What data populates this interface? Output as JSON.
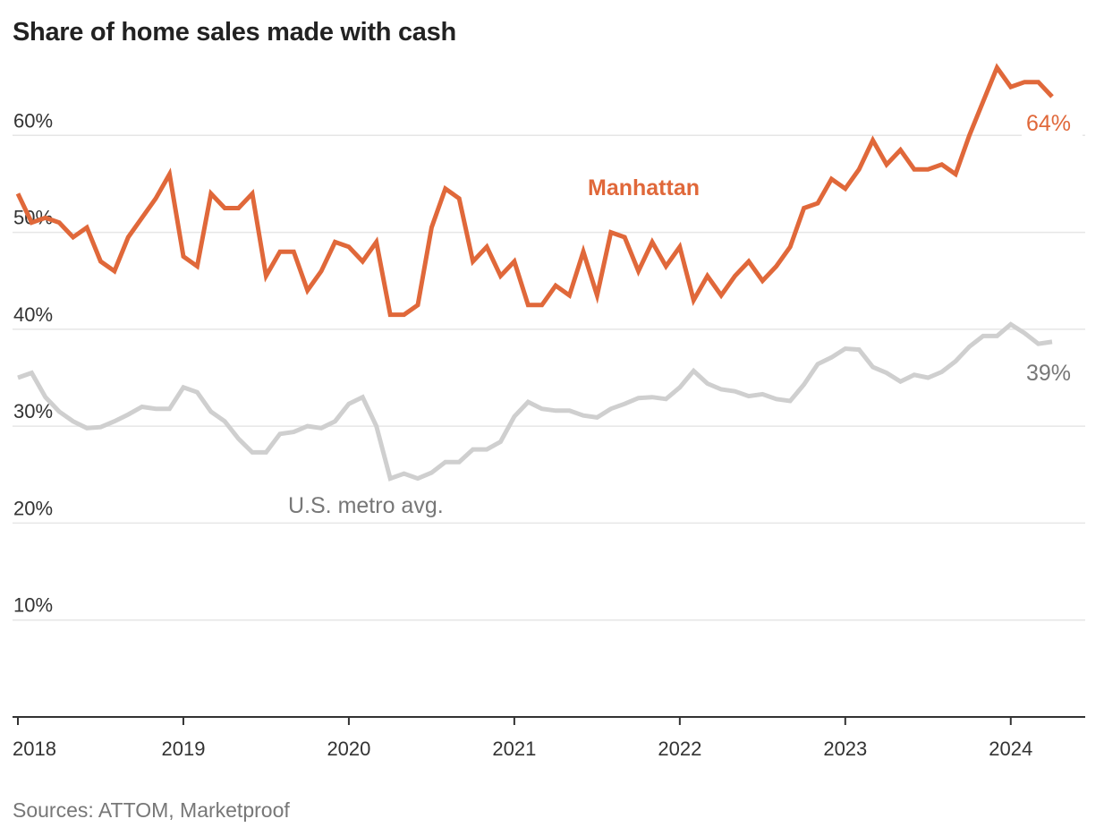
{
  "title": "Share of home sales made with cash",
  "source": "Sources: ATTOM, Marketproof",
  "chart_data": {
    "type": "line",
    "title": "Share of home sales made with cash",
    "xlabel": "",
    "ylabel": "",
    "xlim": [
      2018.0,
      2024.45
    ],
    "ylim": [
      0,
      70
    ],
    "y_ticks": [
      10,
      20,
      30,
      40,
      50,
      60
    ],
    "y_tick_labels": [
      "10%",
      "20%",
      "30%",
      "40%",
      "50%",
      "60%"
    ],
    "x_ticks": [
      2018,
      2019,
      2020,
      2021,
      2022,
      2023,
      2024
    ],
    "x_tick_labels": [
      "2018",
      "2019",
      "2020",
      "2021",
      "2022",
      "2023",
      "2024"
    ],
    "grid": true,
    "series": [
      {
        "name": "Manhattan",
        "label": "Manhattan",
        "end_label": "64%",
        "color": "#e0683a",
        "start": "2018-01",
        "frequency": "monthly",
        "values": [
          54,
          51,
          51.5,
          51,
          49.5,
          50.5,
          47,
          46,
          49.5,
          51.5,
          53.5,
          56,
          47.5,
          46.5,
          54,
          52.5,
          52.5,
          54,
          45.5,
          48,
          48,
          44,
          46,
          49,
          48.5,
          47,
          49,
          41.5,
          41.5,
          42.5,
          50.5,
          54.5,
          53.5,
          47,
          48.5,
          45.5,
          47,
          42.5,
          42.5,
          44.5,
          43.5,
          48,
          43.5,
          50,
          49.5,
          46,
          49,
          46.5,
          48.5,
          43,
          45.5,
          43.5,
          45.5,
          47,
          45,
          46.5,
          48.5,
          52.5,
          53,
          55.5,
          54.5,
          56.5,
          59.5,
          57,
          58.5,
          56.5,
          56.5,
          57,
          56,
          60,
          63.5,
          67,
          65,
          65.5,
          65.5,
          64
        ]
      },
      {
        "name": "U.S. metro avg.",
        "label": "U.S. metro avg.",
        "end_label": "39%",
        "color": "#cfcfcf",
        "start": "2018-01",
        "frequency": "monthly",
        "values": [
          35,
          35.5,
          33,
          31.5,
          30.5,
          29.8,
          29.9,
          30.5,
          31.2,
          32,
          31.8,
          31.8,
          34,
          33.5,
          31.5,
          30.5,
          28.7,
          27.3,
          27.3,
          29.2,
          29.4,
          30,
          29.8,
          30.5,
          32.3,
          33,
          30,
          24.6,
          25.1,
          24.6,
          25.2,
          26.3,
          26.3,
          27.6,
          27.6,
          28.4,
          31,
          32.5,
          31.8,
          31.6,
          31.6,
          31.1,
          30.9,
          31.8,
          32.3,
          32.9,
          33,
          32.8,
          34,
          35.7,
          34.4,
          33.8,
          33.6,
          33.1,
          33.3,
          32.8,
          32.6,
          34.3,
          36.4,
          37.1,
          38,
          37.9,
          36.1,
          35.5,
          34.6,
          35.3,
          35,
          35.6,
          36.7,
          38.2,
          39.3,
          39.3,
          40.5,
          39.6,
          38.5,
          38.7
        ]
      }
    ]
  }
}
